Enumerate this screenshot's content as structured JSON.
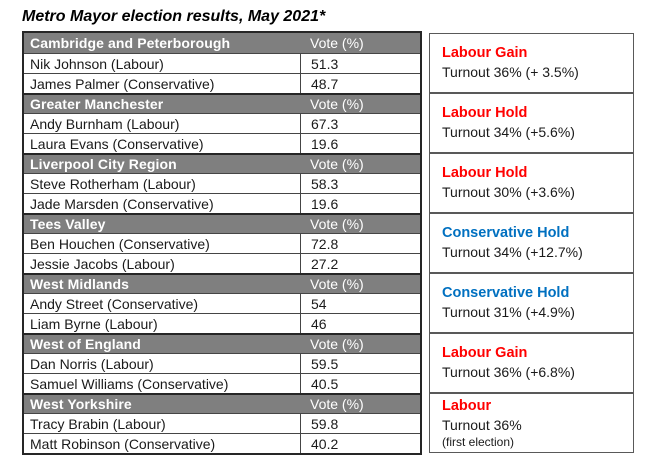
{
  "title": "Metro Mayor election results, May 2021*",
  "table": {
    "vote_header": "Vote (%)",
    "blocks": [
      {
        "region": "Cambridge and Peterborough",
        "candidates": [
          {
            "pre": "Nik Johnson (Labour)",
            "vote": "51.3"
          },
          {
            "pre": "James Palmer (Conservative)",
            "vote": "48.7"
          }
        ],
        "result": {
          "label": "Labour Gain",
          "color": "#ff0000",
          "turnout": "Turnout 36% (+ 3.5%)"
        }
      },
      {
        "region": "Greater Manchester",
        "candidates": [
          {
            "pre": "Andy Burnham (Labour)",
            "vote": "67.3"
          },
          {
            "pre": "Laura Evans (Conservative)",
            "vote": "19.6"
          }
        ],
        "result": {
          "label": "Labour Hold",
          "color": "#ff0000",
          "turnout": "Turnout 34% (+5.6%)"
        }
      },
      {
        "region": "Liverpool City Region",
        "candidates": [
          {
            "pre": "Steve Rotherham (Labour)",
            "vote": "58.3"
          },
          {
            "pre": "Jade Marsden (Conservative)",
            "vote": "19.6"
          }
        ],
        "result": {
          "label": "Labour Hold",
          "color": "#ff0000",
          "turnout": "Turnout 30% (+3.6%)"
        }
      },
      {
        "region": "Tees Valley",
        "candidates": [
          {
            "pre": "Ben ",
            "mis": "Houchen",
            "post": " (Conservative)",
            "vote": "72.8"
          },
          {
            "pre": "Jessie Jacobs (Labour)",
            "vote": "27.2"
          }
        ],
        "result": {
          "label": "Conservative Hold",
          "color": "#0070c0",
          "turnout": "Turnout 34% (+12.7%)"
        }
      },
      {
        "region": "West Midlands",
        "candidates": [
          {
            "pre": "Andy Street (Conservative)",
            "vote": "54"
          },
          {
            "pre": "Liam Byrne (Labour)",
            "vote": "46"
          }
        ],
        "result": {
          "label": "Conservative Hold",
          "color": "#0070c0",
          "turnout": "Turnout 31% (+4.9%)"
        }
      },
      {
        "region": "West of England",
        "candidates": [
          {
            "pre": "Dan Norris (Labour)",
            "vote": "59.5"
          },
          {
            "pre": "Samuel Williams (Conservative)",
            "vote": "40.5"
          }
        ],
        "result": {
          "label": "Labour Gain",
          "color": "#ff0000",
          "turnout": "Turnout 36% (+6.8%)"
        }
      },
      {
        "region": "West Yorkshire",
        "candidates": [
          {
            "pre": "Tracy ",
            "mis": "Brabin",
            "post": " (Labour)",
            "vote": "59.8"
          },
          {
            "pre": "Matt Robinson (Conservative)",
            "vote": "40.2"
          }
        ],
        "result": {
          "label": "Labour",
          "color": "#ff0000",
          "turnout": "Turnout 36%",
          "note": "(first election)"
        }
      }
    ]
  },
  "colors": {
    "labour": "#ff0000",
    "conservative": "#0070c0",
    "header_bg": "#7f7f7f"
  }
}
